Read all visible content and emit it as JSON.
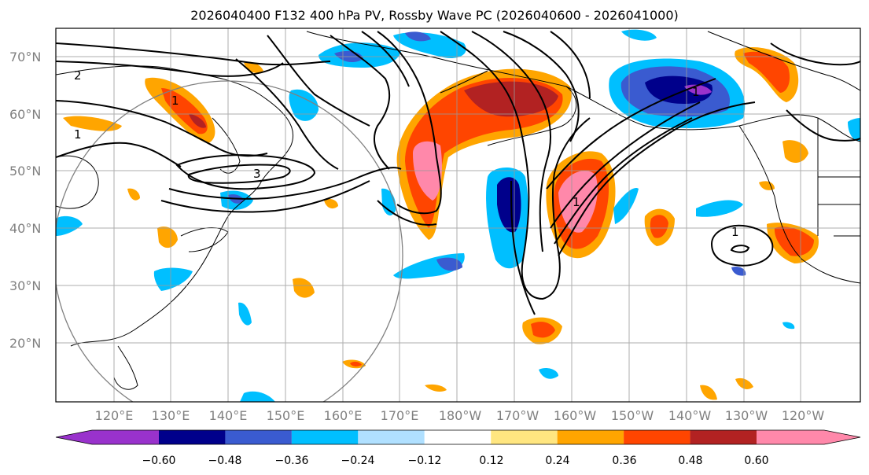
{
  "title": "2026040400 F132 400 hPa PV, Rossby Wave PC (2026040600 - 2026041000)",
  "lat_labels": [
    "70°N",
    "60°N",
    "50°N",
    "40°N",
    "30°N",
    "20°N"
  ],
  "lon_labels": [
    "120°E",
    "130°E",
    "140°E",
    "150°E",
    "160°E",
    "170°E",
    "180°W",
    "170°W",
    "160°W",
    "150°W",
    "140°W",
    "130°W",
    "120°W"
  ],
  "contour_labels": [
    "2",
    "1",
    "3",
    "1",
    "1",
    "1",
    "1"
  ],
  "colorbar": {
    "tick_labels": [
      "−0.60",
      "−0.48",
      "−0.36",
      "−0.24",
      "−0.12",
      "0.12",
      "0.24",
      "0.36",
      "0.48",
      "0.60"
    ],
    "colors": [
      "#9932cc",
      "#00008b",
      "#3a5bd0",
      "#00bfff",
      "#b0e0ff",
      "#ffffff",
      "#ffe680",
      "#ffa500",
      "#ff4500",
      "#b22222",
      "#ff88aa"
    ]
  }
}
